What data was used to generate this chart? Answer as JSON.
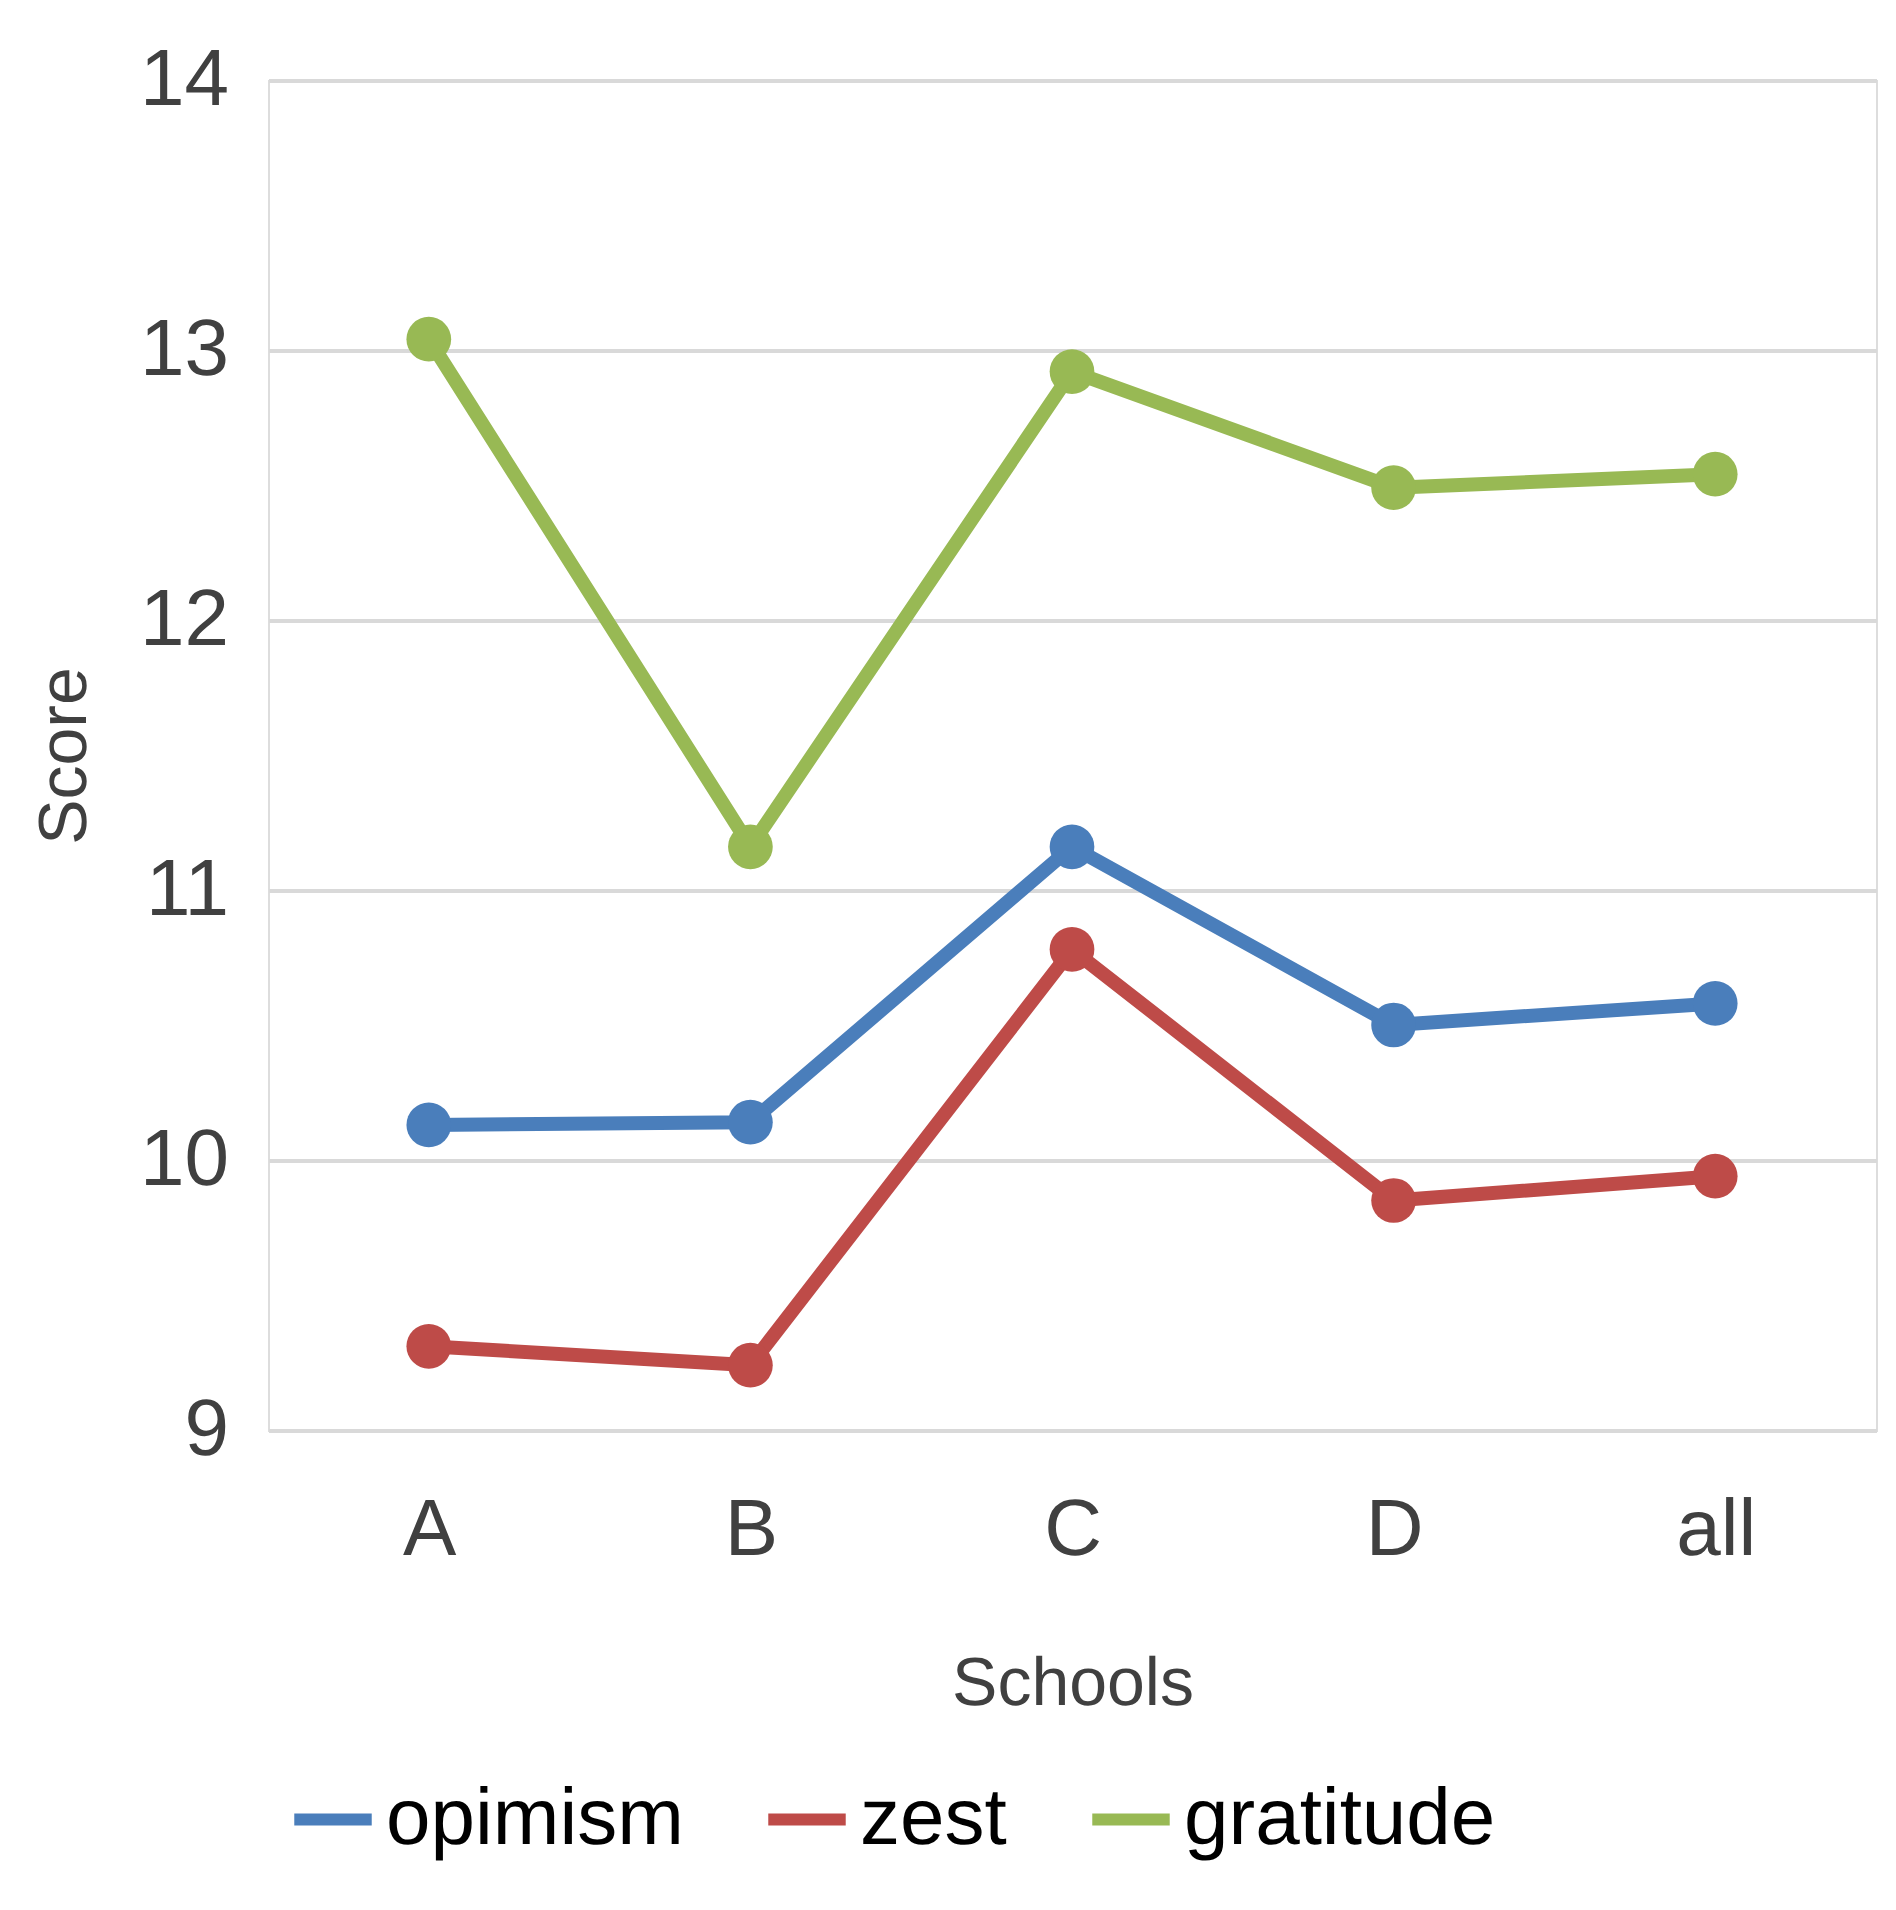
{
  "chart_data": {
    "type": "line",
    "xlabel": "Schools",
    "ylabel": "Score",
    "categories": [
      "A",
      "B",
      "C",
      "D",
      "all"
    ],
    "series": [
      {
        "name": "opimism",
        "color": "#4a7ebb",
        "values": [
          10.13,
          10.14,
          11.16,
          10.5,
          10.58
        ]
      },
      {
        "name": "zest",
        "color": "#be4b48",
        "values": [
          9.31,
          9.24,
          10.78,
          9.85,
          9.94
        ]
      },
      {
        "name": "gratitude",
        "color": "#98b954",
        "values": [
          13.04,
          11.16,
          12.92,
          12.49,
          12.54
        ]
      }
    ],
    "ylim": [
      9,
      14
    ],
    "yticks": [
      9,
      10,
      11,
      12,
      13,
      14
    ],
    "grid": "y",
    "legend": "bottom",
    "marker": "circle",
    "line_style": "solid"
  }
}
